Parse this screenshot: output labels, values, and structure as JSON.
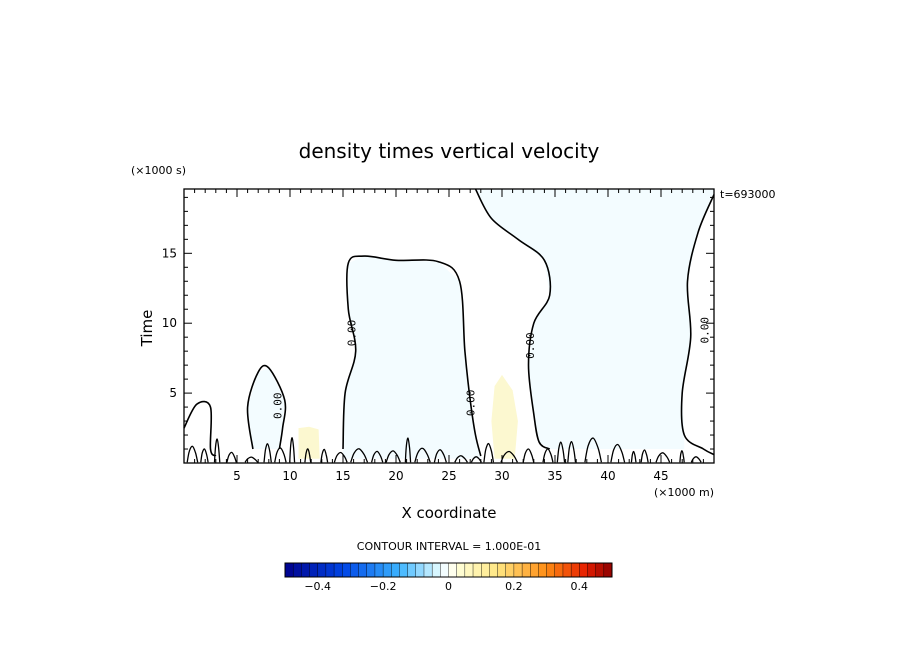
{
  "chart_data": {
    "type": "contour",
    "title": "density times vertical velocity",
    "xlabel": "X coordinate",
    "ylabel": "Time",
    "x_units": "(×1000 m)",
    "y_units": "(×1000 s)",
    "time_stamp": "t=693000",
    "xlim": [
      0,
      50
    ],
    "ylim": [
      0,
      19.6
    ],
    "x_ticks": [
      5,
      10,
      15,
      20,
      25,
      30,
      35,
      40,
      45
    ],
    "y_ticks": [
      5,
      10,
      15
    ],
    "contour_interval_text": "CONTOUR INTERVAL = 1.000E-01",
    "contour_labels": [
      "0.00",
      "0.00",
      "0.00",
      "0.00",
      "0.00"
    ],
    "colorbar": {
      "min": -0.5,
      "max": 0.5,
      "tick_values": [
        -0.4,
        -0.2,
        0,
        0.2,
        0.4
      ],
      "tick_labels": [
        "−0.4",
        "−0.2",
        "0",
        "0.2",
        "0.4"
      ]
    },
    "zero_contours": [
      {
        "name": "left-edge",
        "points": [
          [
            0,
            2.5
          ],
          [
            1.2,
            4.2
          ],
          [
            2.5,
            4.0
          ],
          [
            2.5,
            1.0
          ],
          [
            3.0,
            0.5
          ]
        ]
      },
      {
        "name": "blob-8",
        "points": [
          [
            6.5,
            1.0
          ],
          [
            6.0,
            4.0
          ],
          [
            7.0,
            6.5
          ],
          [
            8.0,
            6.8
          ],
          [
            9.5,
            4.5
          ],
          [
            9.3,
            2.5
          ],
          [
            9.0,
            1.0
          ]
        ]
      },
      {
        "name": "central-cell",
        "points": [
          [
            15.0,
            1.0
          ],
          [
            15.2,
            5.0
          ],
          [
            16.2,
            8.0
          ],
          [
            15.5,
            11.0
          ],
          [
            15.5,
            14.3
          ],
          [
            17.0,
            14.8
          ],
          [
            20.0,
            14.5
          ],
          [
            24.0,
            14.4
          ],
          [
            26.0,
            13.0
          ],
          [
            26.5,
            8.0
          ],
          [
            27.0,
            4.5
          ],
          [
            27.5,
            2.0
          ],
          [
            28.0,
            0.5
          ]
        ]
      },
      {
        "name": "plume-boundary",
        "points": [
          [
            27.5,
            19.6
          ],
          [
            29.0,
            17.5
          ],
          [
            31.5,
            16.0
          ],
          [
            34.0,
            14.5
          ],
          [
            34.5,
            12.0
          ],
          [
            33.0,
            10.0
          ],
          [
            32.5,
            7.0
          ],
          [
            33.0,
            3.5
          ],
          [
            33.5,
            1.5
          ],
          [
            34.5,
            1.0
          ]
        ]
      },
      {
        "name": "right-edge",
        "points": [
          [
            50,
            19.2
          ],
          [
            48.5,
            16.5
          ],
          [
            47.5,
            13.0
          ],
          [
            47.8,
            9.0
          ],
          [
            47.0,
            5.0
          ],
          [
            47.2,
            2.0
          ],
          [
            49.0,
            1.0
          ],
          [
            50,
            0.6
          ]
        ]
      }
    ],
    "shaded_regions": [
      {
        "name": "central-negative",
        "sign": "negative",
        "points": [
          [
            15.0,
            1.0
          ],
          [
            15.2,
            5.0
          ],
          [
            16.2,
            8.0
          ],
          [
            15.5,
            11.0
          ],
          [
            15.5,
            14.3
          ],
          [
            17.0,
            14.8
          ],
          [
            20.0,
            14.5
          ],
          [
            24.0,
            14.4
          ],
          [
            26.0,
            13.0
          ],
          [
            26.5,
            8.0
          ],
          [
            27.0,
            4.5
          ],
          [
            27.5,
            2.0
          ],
          [
            28.0,
            0.5
          ],
          [
            28.0,
            0.3
          ],
          [
            15.0,
            0.3
          ]
        ]
      },
      {
        "name": "right-negative",
        "sign": "negative",
        "points": [
          [
            27.5,
            19.6
          ],
          [
            29.0,
            17.5
          ],
          [
            31.5,
            16.0
          ],
          [
            34.0,
            14.5
          ],
          [
            34.5,
            12.0
          ],
          [
            33.0,
            10.0
          ],
          [
            32.5,
            7.0
          ],
          [
            33.0,
            3.5
          ],
          [
            33.5,
            1.5
          ],
          [
            34.5,
            1.0
          ],
          [
            47.2,
            1.0
          ],
          [
            47.2,
            2.0
          ],
          [
            47.0,
            5.0
          ],
          [
            47.8,
            9.0
          ],
          [
            47.5,
            13.0
          ],
          [
            48.5,
            16.5
          ],
          [
            50,
            19.2
          ],
          [
            50,
            19.6
          ]
        ]
      },
      {
        "name": "blob-negative",
        "sign": "negative",
        "points": [
          [
            6.5,
            1.0
          ],
          [
            6.0,
            4.0
          ],
          [
            7.0,
            6.5
          ],
          [
            8.0,
            6.8
          ],
          [
            9.5,
            4.5
          ],
          [
            9.3,
            2.5
          ],
          [
            9.0,
            1.0
          ]
        ]
      },
      {
        "name": "positive-30",
        "sign": "positive",
        "points": [
          [
            29.3,
            0.3
          ],
          [
            29.0,
            3.0
          ],
          [
            29.3,
            5.5
          ],
          [
            30.0,
            6.3
          ],
          [
            31.0,
            5.2
          ],
          [
            31.5,
            3.0
          ],
          [
            31.2,
            0.3
          ]
        ]
      },
      {
        "name": "positive-12",
        "sign": "positive",
        "points": [
          [
            10.8,
            0.3
          ],
          [
            10.8,
            2.5
          ],
          [
            11.8,
            2.6
          ],
          [
            12.7,
            2.4
          ],
          [
            12.8,
            0.3
          ]
        ]
      }
    ],
    "grid": false,
    "legend": "colorbar-bottom",
    "colors": {
      "negative_fill": "#f3fcff",
      "positive_fill": "#fcf8d0",
      "contour": "#000000"
    }
  }
}
